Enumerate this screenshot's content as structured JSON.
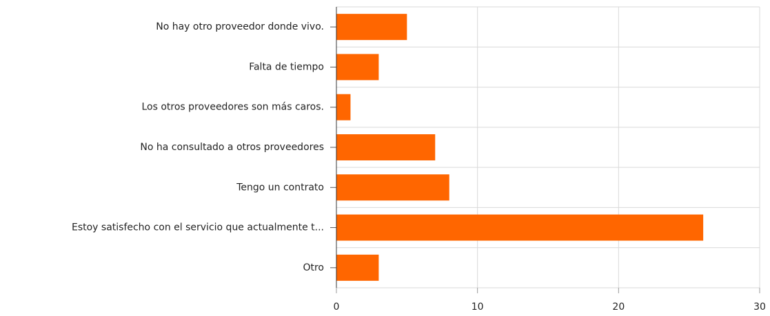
{
  "chart_data": {
    "type": "bar",
    "orientation": "horizontal",
    "categories": [
      "No hay otro proveedor donde vivo.",
      "Falta de tiempo",
      "Los otros proveedores son más caros.",
      "No ha consultado a otros proveedores",
      "Tengo un contrato",
      "Estoy satisfecho con el servicio que actualmente t...",
      "Otro"
    ],
    "values": [
      5,
      3,
      1,
      7,
      8,
      26,
      3
    ],
    "color": "#ff6600",
    "xlim": [
      0,
      30
    ],
    "xticks": [
      0,
      10,
      20,
      30
    ],
    "grid": true
  }
}
